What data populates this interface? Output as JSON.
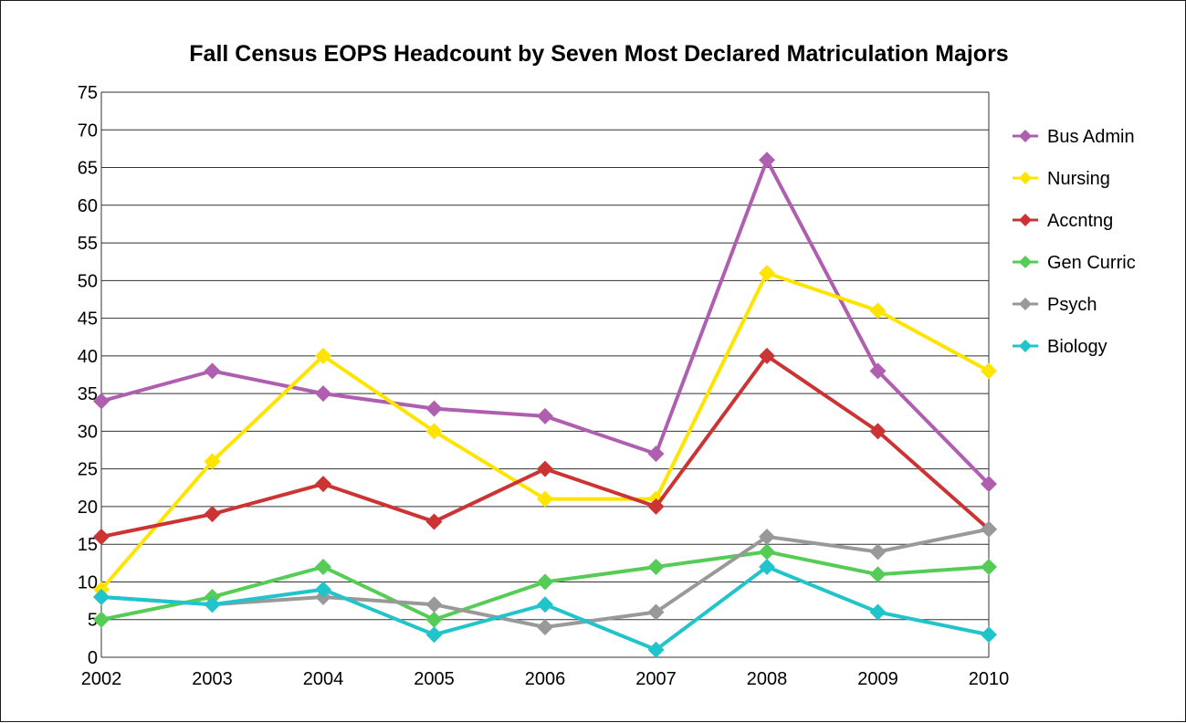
{
  "chart_data": {
    "type": "line",
    "title": "Fall Census EOPS Headcount by Seven Most Declared Matriculation Majors",
    "xlabel": "",
    "ylabel": "",
    "x": [
      "2002",
      "2003",
      "2004",
      "2005",
      "2006",
      "2007",
      "2008",
      "2009",
      "2010"
    ],
    "ylim": [
      0,
      75
    ],
    "yticks": [
      "0",
      "5",
      "10",
      "15",
      "20",
      "25",
      "30",
      "35",
      "40",
      "45",
      "50",
      "55",
      "60",
      "65",
      "70",
      "75"
    ],
    "grid": true,
    "legend_position": "right",
    "series": [
      {
        "name": "Bus Admin",
        "color": "#b05fb0",
        "values": [
          34,
          38,
          35,
          33,
          32,
          27,
          66,
          38,
          23
        ]
      },
      {
        "name": "Nursing",
        "color": "#ffe400",
        "values": [
          9,
          26,
          40,
          30,
          21,
          21,
          51,
          46,
          38
        ]
      },
      {
        "name": "Accntng",
        "color": "#cc3333",
        "values": [
          16,
          19,
          23,
          18,
          25,
          20,
          40,
          30,
          17
        ]
      },
      {
        "name": "Gen Curric",
        "color": "#55cc55",
        "values": [
          5,
          8,
          12,
          5,
          10,
          12,
          14,
          11,
          12
        ]
      },
      {
        "name": "Psych",
        "color": "#999999",
        "values": [
          8,
          7,
          8,
          7,
          4,
          6,
          16,
          14,
          17
        ]
      },
      {
        "name": "Biology",
        "color": "#22c4cc",
        "values": [
          8,
          7,
          9,
          3,
          7,
          1,
          12,
          6,
          3
        ]
      }
    ]
  }
}
